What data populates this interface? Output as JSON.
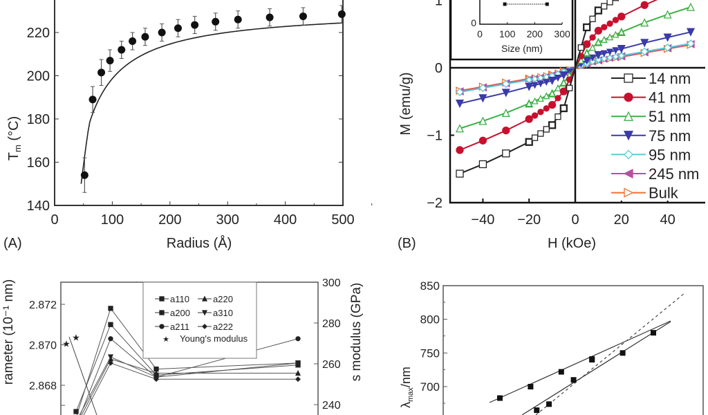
{
  "chart_data": [
    {
      "panel": "(A)",
      "type": "scatter",
      "xlabel": "Radius (Å)",
      "ylabel": "T",
      "ylabel_sub": "m",
      "ylabel_unit": " (°C)",
      "xlim": [
        0,
        500
      ],
      "ylim": [
        140,
        235
      ],
      "xticks": [
        0,
        100,
        200,
        300,
        400,
        500
      ],
      "yticks": [
        140,
        160,
        180,
        200,
        220
      ],
      "x": [
        52,
        66,
        81,
        96,
        116,
        135,
        157,
        186,
        214,
        243,
        279,
        318,
        373,
        431,
        498
      ],
      "y": [
        154,
        189,
        201.5,
        207,
        212,
        216,
        218,
        220,
        222,
        223.5,
        225,
        226,
        227,
        227.5,
        228.5
      ],
      "error": [
        8,
        6,
        6,
        5,
        4,
        4,
        4,
        4,
        4,
        4,
        4,
        4,
        4,
        4,
        4
      ],
      "fit_curve": true
    },
    {
      "panel": "(B)",
      "type": "line",
      "xlabel": "H (kOe)",
      "ylabel": "M (emu/g)",
      "xlim": [
        -55,
        57
      ],
      "ylim": [
        -2,
        1.2
      ],
      "xticks": [
        -40,
        -20,
        0,
        20,
        40
      ],
      "yticks": [
        -2,
        -1,
        0,
        1
      ],
      "legend_position": "right",
      "x": [
        -50,
        -40,
        -30,
        -20,
        -10,
        -5,
        0,
        5,
        10,
        20,
        30,
        40,
        50
      ],
      "series": [
        {
          "name": "14 nm",
          "color": "#222222",
          "marker": "square-open",
          "values": [
            -1.57,
            -1.43,
            -1.27,
            -1.1,
            -0.85,
            -0.6,
            0,
            0.6,
            0.85,
            1.1,
            1.27,
            1.43,
            1.57
          ]
        },
        {
          "name": "41 nm",
          "color": "#c8102e",
          "marker": "circle-filled",
          "values": [
            -1.22,
            -1.08,
            -0.93,
            -0.76,
            -0.55,
            -0.35,
            0,
            0.35,
            0.55,
            0.76,
            0.93,
            1.08,
            1.22
          ]
        },
        {
          "name": "51 nm",
          "color": "#3cb043",
          "marker": "triangle-up-open",
          "values": [
            -0.9,
            -0.79,
            -0.67,
            -0.53,
            -0.38,
            -0.22,
            0,
            0.22,
            0.38,
            0.53,
            0.67,
            0.79,
            0.9
          ]
        },
        {
          "name": "75 nm",
          "color": "#3a3aa8",
          "marker": "triangle-down-filled",
          "values": [
            -0.53,
            -0.45,
            -0.37,
            -0.28,
            -0.19,
            -0.11,
            0,
            0.11,
            0.19,
            0.28,
            0.37,
            0.45,
            0.53
          ]
        },
        {
          "name": "95 nm",
          "color": "#5bc8d0",
          "marker": "diamond-open",
          "values": [
            -0.36,
            -0.3,
            -0.24,
            -0.18,
            -0.12,
            -0.06,
            0,
            0.06,
            0.12,
            0.18,
            0.24,
            0.3,
            0.36
          ]
        },
        {
          "name": "245 nm",
          "color": "#c04aa0",
          "marker": "triangle-left-filled",
          "values": [
            -0.35,
            -0.29,
            -0.23,
            -0.17,
            -0.11,
            -0.06,
            0,
            0.06,
            0.11,
            0.17,
            0.23,
            0.29,
            0.35
          ]
        },
        {
          "name": "Bulk",
          "color": "#f07030",
          "marker": "triangle-right-open",
          "values": [
            -0.34,
            -0.28,
            -0.22,
            -0.16,
            -0.1,
            -0.05,
            0,
            0.05,
            0.1,
            0.16,
            0.22,
            0.28,
            0.34
          ]
        }
      ],
      "inset": {
        "xlabel": "Size (nm)",
        "xticks": [
          0,
          100,
          200,
          300
        ],
        "yticks": [
          0
        ],
        "x": [
          91,
          245
        ]
      }
    },
    {
      "panel": "",
      "type": "line",
      "ylabel": "rameter (10⁻¹ nm)",
      "ylabel_right": "s modulus (GPa)",
      "ylim": [
        2.8655,
        2.8737
      ],
      "yticks": [
        2.868,
        2.87,
        2.872
      ],
      "ylim_right": [
        235,
        300
      ],
      "yticks_right": [
        240,
        260,
        280,
        300
      ],
      "legend_position": "top-center",
      "series": [
        {
          "name": "a110",
          "marker": "square",
          "values": [
            2.8664,
            2.8718,
            2.8688,
            2.8691
          ]
        },
        {
          "name": "a220",
          "marker": "triangle-up",
          "values": [
            2.866,
            2.8693,
            2.8686,
            2.8686
          ]
        },
        {
          "name": "a200",
          "marker": "square",
          "values": [
            2.8667,
            2.871,
            2.8685,
            2.869
          ]
        },
        {
          "name": "a310",
          "marker": "triangle-down",
          "values": [
            2.8662,
            2.8694,
            2.8684,
            2.8691
          ]
        },
        {
          "name": "a211",
          "marker": "circle",
          "values": [
            2.866,
            2.8703,
            2.8684,
            2.8703
          ]
        },
        {
          "name": "a222",
          "marker": "diamond",
          "values": [
            2.8658,
            2.8691,
            2.8683,
            2.8683
          ]
        }
      ],
      "young": {
        "name": "Young's modulus",
        "values": [
          270,
          273
        ]
      }
    },
    {
      "panel": "",
      "type": "scatter",
      "ylabel": "λ",
      "ylabel_sub": "max",
      "ylabel_unit": "/nm",
      "ylim": [
        660,
        850
      ],
      "yticks": [
        700,
        750,
        800,
        850
      ],
      "series": [
        {
          "x": [
            1,
            2,
            3,
            4,
            5,
            6
          ],
          "values": [
            683,
            700,
            722,
            741,
            750,
            780
          ]
        },
        {
          "x": [
            2.2,
            2.6,
            3.4,
            4.0
          ],
          "values": [
            665,
            674,
            710,
            740
          ]
        }
      ]
    }
  ]
}
